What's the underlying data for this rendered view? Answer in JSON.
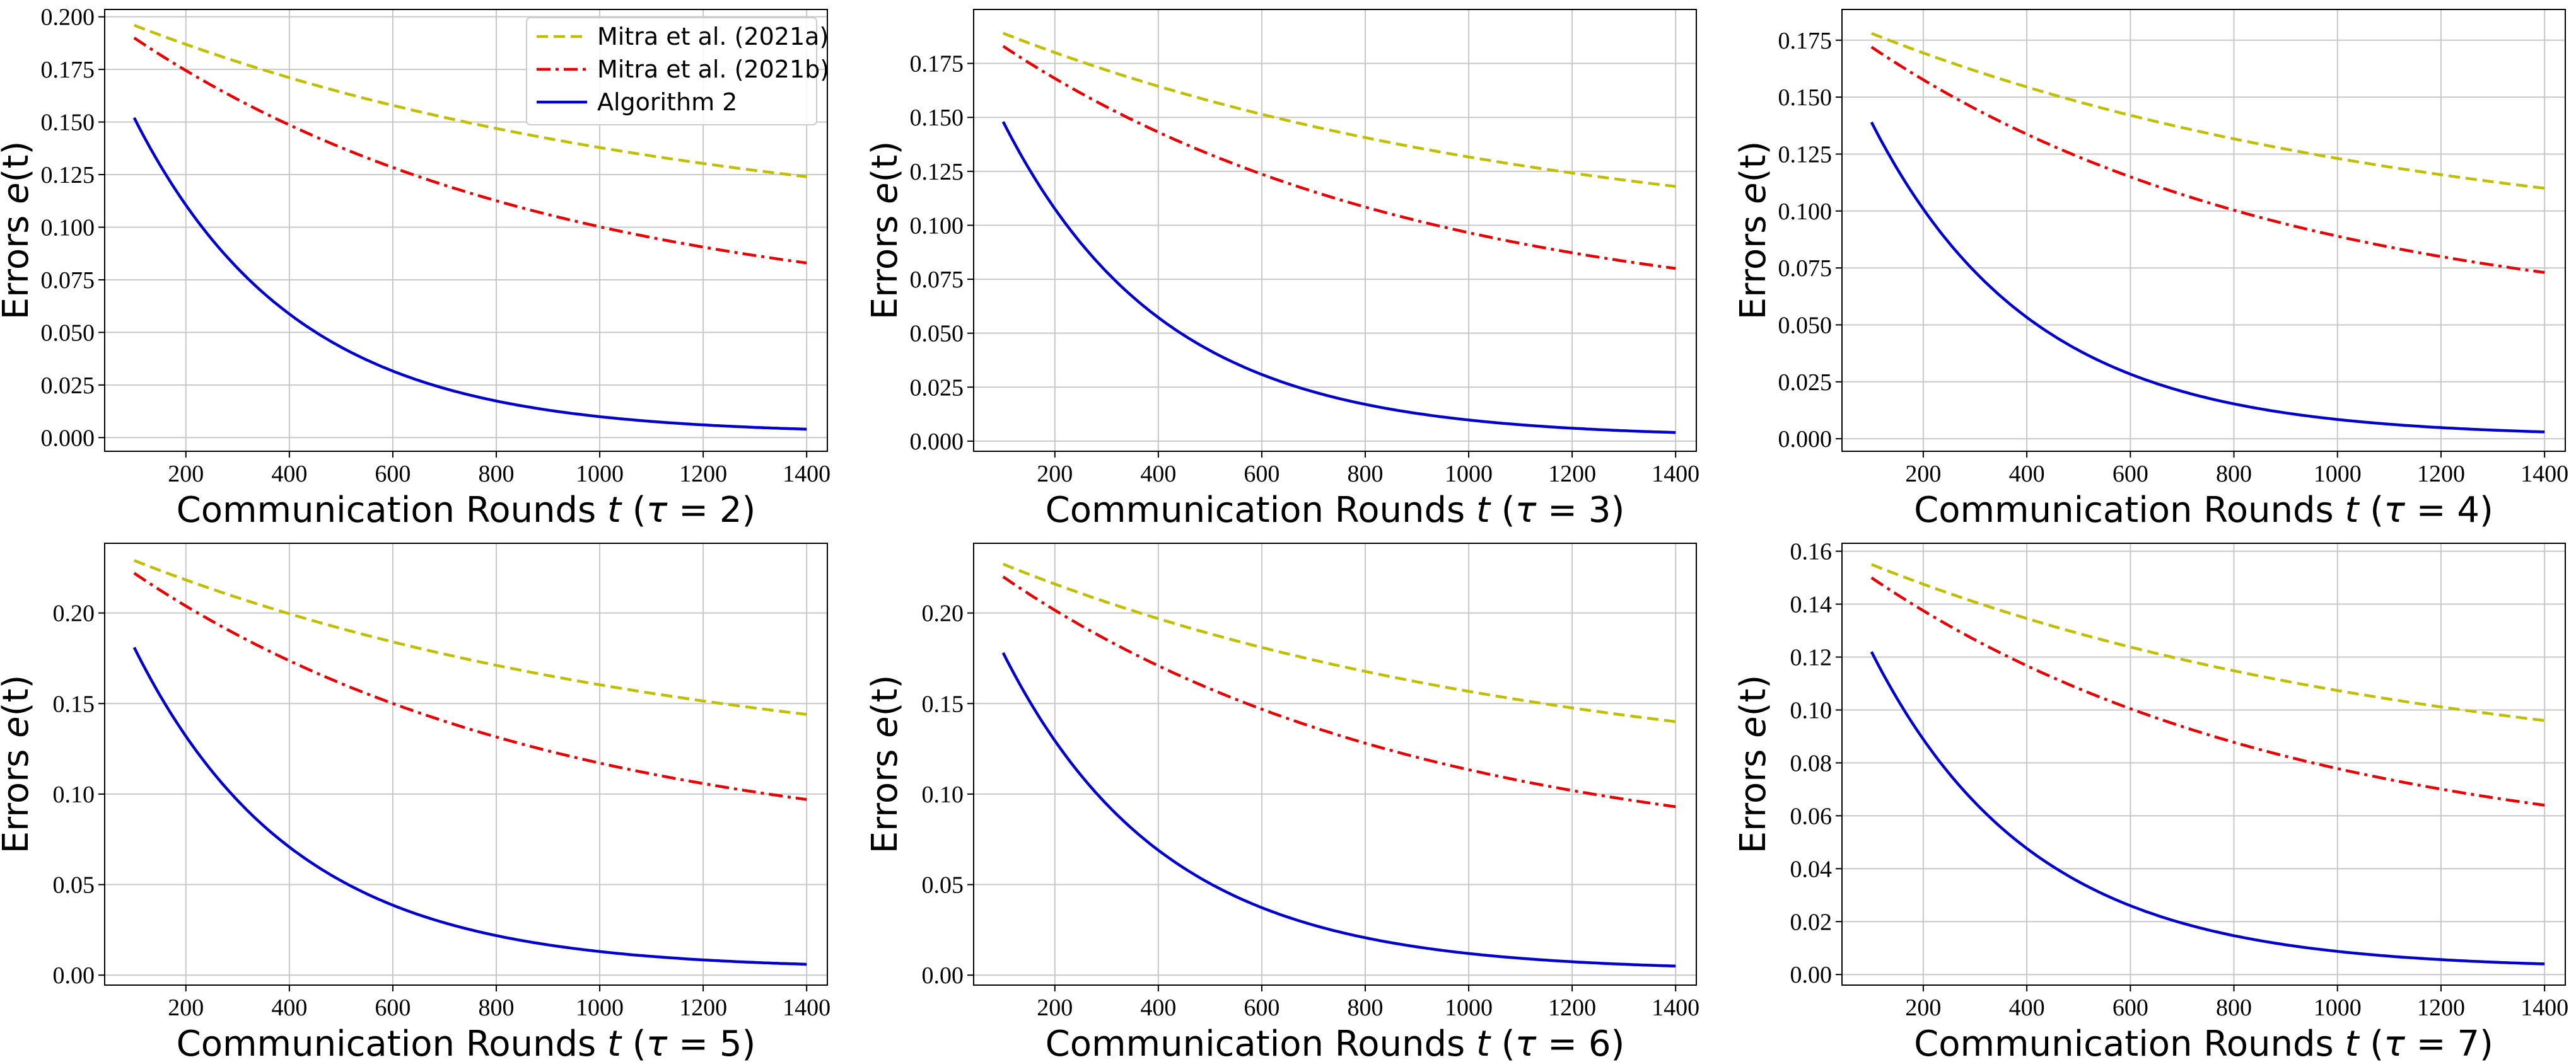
{
  "figure": {
    "colors": {
      "series_a": "#bfbf00",
      "series_b": "#e60000",
      "series_c": "#0000cc",
      "grid": "#c8c8c8"
    }
  },
  "legend": {
    "entries": [
      {
        "label": "Mitra et al. (2021a)",
        "style": "dashed",
        "color": "#bfbf00"
      },
      {
        "label": "Mitra et al. (2021b)",
        "style": "dashdot",
        "color": "#e60000"
      },
      {
        "label": "Algorithm 2",
        "style": "solid",
        "color": "#0000cc"
      }
    ],
    "placement": "top-right of first panel"
  },
  "chart_data": [
    {
      "type": "line",
      "tau": "2",
      "xlabel_prefix": "Communication Rounds ",
      "xlabel_t": "t",
      "xlabel_open": " (",
      "xlabel_tau": "τ",
      "xlabel_eq": " = ",
      "xlabel_val": "2",
      "xlabel_close": ")",
      "ylabel_prefix": "Errors ",
      "ylabel_e": "e",
      "ylabel_t": "(t)",
      "xlim": [
        43,
        1440
      ],
      "ylim": [
        -0.0065,
        0.2035
      ],
      "xticks": [
        200,
        400,
        600,
        800,
        1000,
        1200,
        1400
      ],
      "xtick_labels": [
        "200",
        "400",
        "600",
        "800",
        "1000",
        "1200",
        "1400"
      ],
      "yticks": [
        0,
        0.025,
        0.05,
        0.075,
        0.1,
        0.125,
        0.15,
        0.175,
        0.2
      ],
      "ytick_labels": [
        "0.000",
        "0.025",
        "0.050",
        "0.075",
        "0.100",
        "0.125",
        "0.150",
        "0.175",
        "0.200"
      ],
      "grid": true,
      "show_legend": true,
      "series": [
        {
          "name": "Mitra et al. (2021a)",
          "start": [
            100,
            0.196
          ],
          "end": [
            1400,
            0.124
          ],
          "shape": 1.2
        },
        {
          "name": "Mitra et al. (2021b)",
          "start": [
            100,
            0.19
          ],
          "end": [
            1400,
            0.083
          ],
          "shape": 1.6
        },
        {
          "name": "Algorithm 2",
          "start": [
            100,
            0.152
          ],
          "end": [
            1400,
            0.004
          ],
          "shape": 4.2
        }
      ]
    },
    {
      "type": "line",
      "tau": "3",
      "xlabel_prefix": "Communication Rounds ",
      "xlabel_t": "t",
      "xlabel_open": " (",
      "xlabel_tau": "τ",
      "xlabel_eq": " = ",
      "xlabel_val": "3",
      "xlabel_close": ")",
      "ylabel_prefix": "Errors ",
      "ylabel_e": "e",
      "ylabel_t": "(t)",
      "xlim": [
        43,
        1440
      ],
      "ylim": [
        -0.0047,
        0.2
      ],
      "xticks": [
        200,
        400,
        600,
        800,
        1000,
        1200,
        1400
      ],
      "xtick_labels": [
        "200",
        "400",
        "600",
        "800",
        "1000",
        "1200",
        "1400"
      ],
      "yticks": [
        0,
        0.025,
        0.05,
        0.075,
        0.1,
        0.125,
        0.15,
        0.175
      ],
      "ytick_labels": [
        "0.000",
        "0.025",
        "0.050",
        "0.075",
        "0.100",
        "0.125",
        "0.150",
        "0.175"
      ],
      "grid": true,
      "show_legend": false,
      "series": [
        {
          "name": "Mitra et al. (2021a)",
          "start": [
            100,
            0.189
          ],
          "end": [
            1400,
            0.118
          ],
          "shape": 1.2
        },
        {
          "name": "Mitra et al. (2021b)",
          "start": [
            100,
            0.183
          ],
          "end": [
            1400,
            0.08
          ],
          "shape": 1.6
        },
        {
          "name": "Algorithm 2",
          "start": [
            100,
            0.148
          ],
          "end": [
            1400,
            0.004
          ],
          "shape": 4.2
        }
      ]
    },
    {
      "type": "line",
      "tau": "4",
      "xlabel_prefix": "Communication Rounds ",
      "xlabel_t": "t",
      "xlabel_open": " (",
      "xlabel_tau": "τ",
      "xlabel_eq": " = ",
      "xlabel_val": "4",
      "xlabel_close": ")",
      "ylabel_prefix": "Errors ",
      "ylabel_e": "e",
      "ylabel_t": "(t)",
      "xlim": [
        43,
        1440
      ],
      "ylim": [
        -0.0055,
        0.1885
      ],
      "xticks": [
        200,
        400,
        600,
        800,
        1000,
        1200,
        1400
      ],
      "xtick_labels": [
        "200",
        "400",
        "600",
        "800",
        "1000",
        "1200",
        "1400"
      ],
      "yticks": [
        0,
        0.025,
        0.05,
        0.075,
        0.1,
        0.125,
        0.15,
        0.175
      ],
      "ytick_labels": [
        "0.000",
        "0.025",
        "0.050",
        "0.075",
        "0.100",
        "0.125",
        "0.150",
        "0.175"
      ],
      "grid": true,
      "show_legend": false,
      "series": [
        {
          "name": "Mitra et al. (2021a)",
          "start": [
            100,
            0.178
          ],
          "end": [
            1400,
            0.11
          ],
          "shape": 1.2
        },
        {
          "name": "Mitra et al. (2021b)",
          "start": [
            100,
            0.172
          ],
          "end": [
            1400,
            0.073
          ],
          "shape": 1.6
        },
        {
          "name": "Algorithm 2",
          "start": [
            100,
            0.139
          ],
          "end": [
            1400,
            0.003
          ],
          "shape": 4.2
        }
      ]
    },
    {
      "type": "line",
      "tau": "5",
      "xlabel_prefix": "Communication Rounds ",
      "xlabel_t": "t",
      "xlabel_open": " (",
      "xlabel_tau": "τ",
      "xlabel_eq": " = ",
      "xlabel_val": "5",
      "xlabel_close": ")",
      "ylabel_prefix": "Errors ",
      "ylabel_e": "e",
      "ylabel_t": "(t)",
      "xlim": [
        43,
        1440
      ],
      "ylim": [
        -0.0055,
        0.2385
      ],
      "xticks": [
        200,
        400,
        600,
        800,
        1000,
        1200,
        1400
      ],
      "xtick_labels": [
        "200",
        "400",
        "600",
        "800",
        "1000",
        "1200",
        "1400"
      ],
      "yticks": [
        0,
        0.05,
        0.1,
        0.15,
        0.2
      ],
      "ytick_labels": [
        "0.00",
        "0.05",
        "0.10",
        "0.15",
        "0.20"
      ],
      "grid": true,
      "show_legend": false,
      "series": [
        {
          "name": "Mitra et al. (2021a)",
          "start": [
            100,
            0.229
          ],
          "end": [
            1400,
            0.144
          ],
          "shape": 1.2
        },
        {
          "name": "Mitra et al. (2021b)",
          "start": [
            100,
            0.222
          ],
          "end": [
            1400,
            0.097
          ],
          "shape": 1.6
        },
        {
          "name": "Algorithm 2",
          "start": [
            100,
            0.181
          ],
          "end": [
            1400,
            0.006
          ],
          "shape": 4.2
        }
      ]
    },
    {
      "type": "line",
      "tau": "6",
      "xlabel_prefix": "Communication Rounds ",
      "xlabel_t": "t",
      "xlabel_open": " (",
      "xlabel_tau": "τ",
      "xlabel_eq": " = ",
      "xlabel_val": "6",
      "xlabel_close": ")",
      "ylabel_prefix": "Errors ",
      "ylabel_e": "e",
      "ylabel_t": "(t)",
      "xlim": [
        43,
        1440
      ],
      "ylim": [
        -0.0055,
        0.2385
      ],
      "xticks": [
        200,
        400,
        600,
        800,
        1000,
        1200,
        1400
      ],
      "xtick_labels": [
        "200",
        "400",
        "600",
        "800",
        "1000",
        "1200",
        "1400"
      ],
      "yticks": [
        0,
        0.05,
        0.1,
        0.15,
        0.2
      ],
      "ytick_labels": [
        "0.00",
        "0.05",
        "0.10",
        "0.15",
        "0.20"
      ],
      "grid": true,
      "show_legend": false,
      "series": [
        {
          "name": "Mitra et al. (2021a)",
          "start": [
            100,
            0.227
          ],
          "end": [
            1400,
            0.14
          ],
          "shape": 1.2
        },
        {
          "name": "Mitra et al. (2021b)",
          "start": [
            100,
            0.22
          ],
          "end": [
            1400,
            0.093
          ],
          "shape": 1.6
        },
        {
          "name": "Algorithm 2",
          "start": [
            100,
            0.178
          ],
          "end": [
            1400,
            0.005
          ],
          "shape": 4.2
        }
      ]
    },
    {
      "type": "line",
      "tau": "7",
      "xlabel_prefix": "Communication Rounds ",
      "xlabel_t": "t",
      "xlabel_open": " (",
      "xlabel_tau": "τ",
      "xlabel_eq": " = ",
      "xlabel_val": "7",
      "xlabel_close": ")",
      "ylabel_prefix": "Errors ",
      "ylabel_e": "e",
      "ylabel_t": "(t)",
      "xlim": [
        43,
        1440
      ],
      "ylim": [
        -0.004,
        0.163
      ],
      "xticks": [
        200,
        400,
        600,
        800,
        1000,
        1200,
        1400
      ],
      "xtick_labels": [
        "200",
        "400",
        "600",
        "800",
        "1000",
        "1200",
        "1400"
      ],
      "yticks": [
        0,
        0.02,
        0.04,
        0.06,
        0.08,
        0.1,
        0.12,
        0.14,
        0.16
      ],
      "ytick_labels": [
        "0.00",
        "0.02",
        "0.04",
        "0.06",
        "0.08",
        "0.10",
        "0.12",
        "0.14",
        "0.16"
      ],
      "grid": true,
      "show_legend": false,
      "series": [
        {
          "name": "Mitra et al. (2021a)",
          "start": [
            100,
            0.155
          ],
          "end": [
            1400,
            0.096
          ],
          "shape": 1.2
        },
        {
          "name": "Mitra et al. (2021b)",
          "start": [
            100,
            0.15
          ],
          "end": [
            1400,
            0.064
          ],
          "shape": 1.6
        },
        {
          "name": "Algorithm 2",
          "start": [
            100,
            0.122
          ],
          "end": [
            1400,
            0.004
          ],
          "shape": 4.2
        }
      ]
    }
  ]
}
